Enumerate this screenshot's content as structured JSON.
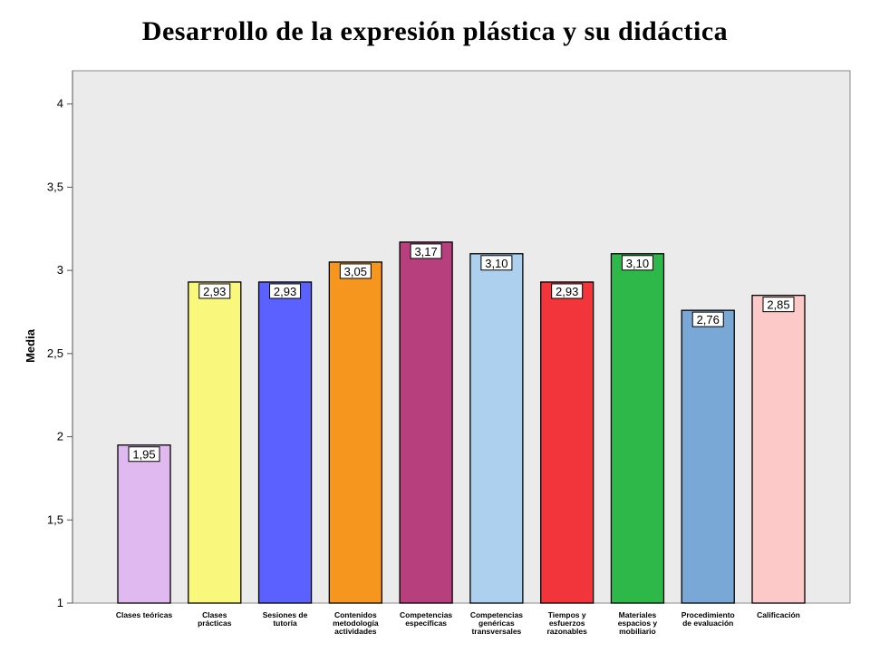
{
  "chart_data": {
    "type": "bar",
    "title": "Desarrollo de la expresión plástica y su didáctica",
    "xlabel": "",
    "ylabel": "Media",
    "ylim": [
      1,
      4.2
    ],
    "yticks": [
      "1",
      "1,5",
      "2",
      "2,5",
      "3",
      "3,5",
      "4"
    ],
    "ytick_values": [
      1,
      1.5,
      2,
      2.5,
      3,
      3.5,
      4
    ],
    "grid": false,
    "categories": [
      [
        "Clases teóricas"
      ],
      [
        "Clases",
        "prácticas"
      ],
      [
        "Sesiones de",
        "tutoría"
      ],
      [
        "Contenidos",
        "metodología",
        "actividades"
      ],
      [
        "Competencias",
        "específicas"
      ],
      [
        "Competencias",
        "genéricas",
        "transversales"
      ],
      [
        "Tiempos y",
        "esfuerzos",
        "razonables"
      ],
      [
        "Materiales",
        "espacios y",
        "mobiliario"
      ],
      [
        "Procedimiento",
        "de evaluación"
      ],
      [
        "Calificación"
      ]
    ],
    "values": [
      1.95,
      2.93,
      2.93,
      3.05,
      3.17,
      3.1,
      2.93,
      3.1,
      2.76,
      2.85
    ],
    "value_labels": [
      "1,95",
      "2,93",
      "2,93",
      "3,05",
      "3,17",
      "3,10",
      "2,93",
      "3,10",
      "2,76",
      "2,85"
    ],
    "colors": [
      "#dfb9ef",
      "#f9f77c",
      "#5b61fe",
      "#f7961e",
      "#b83f7d",
      "#add0ee",
      "#f2343b",
      "#2fb84a",
      "#7aa8d6",
      "#fdc8c8"
    ],
    "plot_background": "#ebebeb"
  }
}
